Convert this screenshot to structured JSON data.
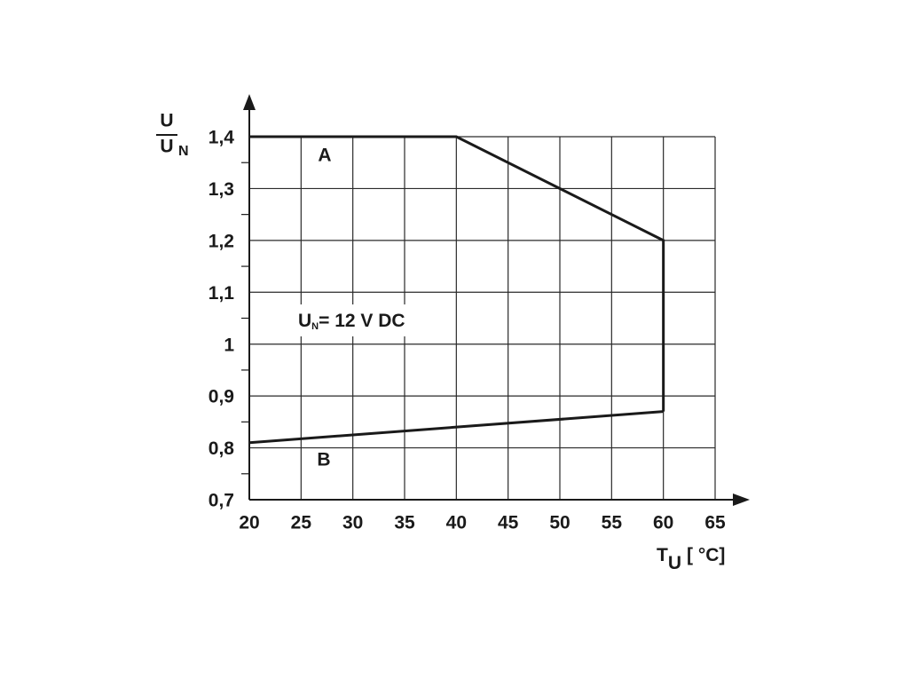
{
  "chart_data": {
    "type": "line",
    "ylabel_num": "U",
    "ylabel_den": "U",
    "ylabel_den_sub": "N",
    "xlabel": "T",
    "xlabel_sub": "U",
    "xlabel_unit": "[ °C]",
    "annotation": {
      "main": "U",
      "sub": "N",
      "rest": "= 12 V DC"
    },
    "xlim": [
      20,
      65
    ],
    "xticks": [
      20,
      25,
      30,
      35,
      40,
      45,
      50,
      55,
      60,
      65
    ],
    "ylim": [
      0.7,
      1.4
    ],
    "yticks": [
      {
        "value": 0.7,
        "label": "0,7"
      },
      {
        "value": 0.8,
        "label": "0,8"
      },
      {
        "value": 0.9,
        "label": "0,9"
      },
      1,
      {
        "value": 1.1,
        "label": "1,1"
      },
      {
        "value": 1.2,
        "label": "1,2"
      },
      {
        "value": 1.3,
        "label": "1,3"
      },
      {
        "value": 1.4,
        "label": "1,4"
      }
    ],
    "yminorticks": [
      0.75,
      0.85,
      0.95,
      1.05,
      1.15,
      1.25,
      1.35
    ],
    "grid": true,
    "series": [
      {
        "name": "A",
        "color": "#1a1a1a",
        "x": [
          20,
          40,
          60,
          60
        ],
        "values": [
          1.4,
          1.4,
          1.2,
          0.87
        ]
      },
      {
        "name": "B",
        "color": "#1a1a1a",
        "x": [
          20,
          60
        ],
        "values": [
          0.81,
          0.87
        ]
      }
    ]
  }
}
